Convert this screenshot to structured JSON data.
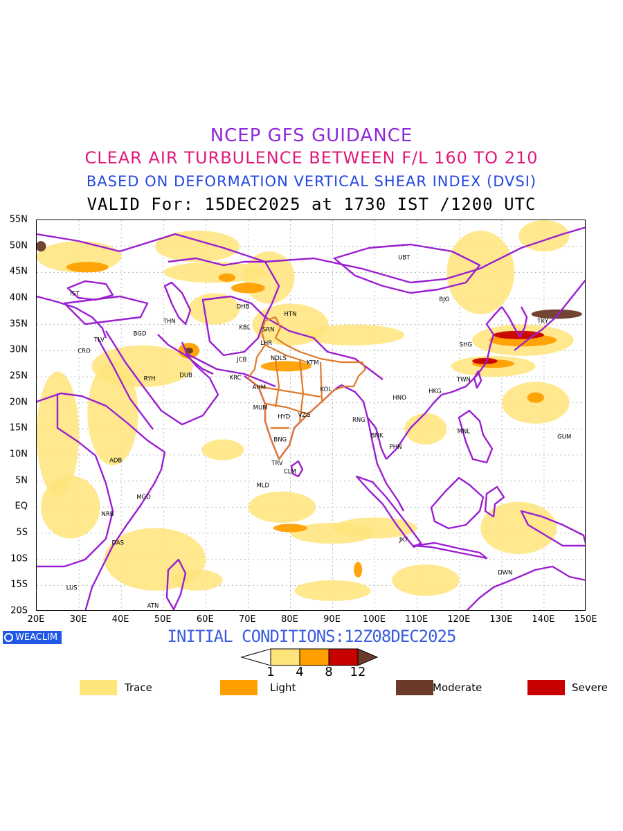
{
  "titles": {
    "line1": "NCEP GFS GUIDANCE",
    "line2": "CLEAR AIR TURBULENCE BETWEEN F/L 160 TO 210",
    "line3": "BASED ON DEFORMATION VERTICAL SHEAR INDEX (DVSI)",
    "line4": "VALID For: 15DEC2025 at 1730 IST /1200 UTC"
  },
  "lat_labels": [
    "55N",
    "50N",
    "45N",
    "40N",
    "35N",
    "30N",
    "25N",
    "20N",
    "15N",
    "10N",
    "5N",
    "EQ",
    "5S",
    "10S",
    "15S",
    "20S"
  ],
  "lon_labels": [
    "20E",
    "30E",
    "40E",
    "50E",
    "60E",
    "70E",
    "80E",
    "90E",
    "100E",
    "110E",
    "120E",
    "130E",
    "140E",
    "150E"
  ],
  "initial_conditions": "INITIAL CONDITIONS:12Z08DEC2025",
  "logo_text": "WEACLIM",
  "colorbar": {
    "ticks": [
      "1",
      "4",
      "8",
      "12"
    ],
    "colors": [
      "#ffe47a",
      "#ffa000",
      "#c80000",
      "#6b3a28"
    ]
  },
  "legend": [
    {
      "label": "Trace",
      "color": "#ffe47a"
    },
    {
      "label": "Light",
      "color": "#ffa000"
    },
    {
      "label": "Moderate",
      "color": "#6b3a28"
    },
    {
      "label": "Severe",
      "color": "#c80000"
    }
  ],
  "stations": [
    {
      "code": "UBT",
      "lon": 106.9,
      "lat": 47.9
    },
    {
      "code": "BJG",
      "lon": 116.4,
      "lat": 39.9
    },
    {
      "code": "SHG",
      "lon": 121.5,
      "lat": 31.2
    },
    {
      "code": "TKY",
      "lon": 139.7,
      "lat": 35.7
    },
    {
      "code": "TWN",
      "lon": 121.0,
      "lat": 24.5
    },
    {
      "code": "HKG",
      "lon": 114.2,
      "lat": 22.3
    },
    {
      "code": "HNO",
      "lon": 105.8,
      "lat": 21.0
    },
    {
      "code": "MNL",
      "lon": 121.0,
      "lat": 14.6
    },
    {
      "code": "GUM",
      "lon": 144.8,
      "lat": 13.5
    },
    {
      "code": "BNK",
      "lon": 100.5,
      "lat": 13.8
    },
    {
      "code": "PHN",
      "lon": 104.9,
      "lat": 11.6
    },
    {
      "code": "RNG",
      "lon": 96.2,
      "lat": 16.8
    },
    {
      "code": "KOL",
      "lon": 88.4,
      "lat": 22.6
    },
    {
      "code": "KTM",
      "lon": 85.3,
      "lat": 27.7
    },
    {
      "code": "NDLS",
      "lon": 77.2,
      "lat": 28.6
    },
    {
      "code": "LHR",
      "lon": 74.3,
      "lat": 31.5
    },
    {
      "code": "SRN",
      "lon": 74.8,
      "lat": 34.1
    },
    {
      "code": "HTN",
      "lon": 80.0,
      "lat": 37.1
    },
    {
      "code": "KBL",
      "lon": 69.2,
      "lat": 34.5
    },
    {
      "code": "DHB",
      "lon": 68.8,
      "lat": 38.5
    },
    {
      "code": "JCB",
      "lon": 68.5,
      "lat": 28.3
    },
    {
      "code": "KRC",
      "lon": 67.0,
      "lat": 24.9
    },
    {
      "code": "AHM",
      "lon": 72.6,
      "lat": 23.0
    },
    {
      "code": "MUM",
      "lon": 72.9,
      "lat": 19.1
    },
    {
      "code": "HYD",
      "lon": 78.5,
      "lat": 17.4
    },
    {
      "code": "VZG",
      "lon": 83.3,
      "lat": 17.7
    },
    {
      "code": "BNG",
      "lon": 77.6,
      "lat": 13.0
    },
    {
      "code": "TRV",
      "lon": 76.9,
      "lat": 8.5
    },
    {
      "code": "CLM",
      "lon": 79.9,
      "lat": 6.9
    },
    {
      "code": "MLD",
      "lon": 73.5,
      "lat": 4.2
    },
    {
      "code": "JKT",
      "lon": 106.8,
      "lat": -6.2
    },
    {
      "code": "DWN",
      "lon": 130.8,
      "lat": -12.5
    },
    {
      "code": "DUB",
      "lon": 55.3,
      "lat": 25.3
    },
    {
      "code": "RYH",
      "lon": 46.7,
      "lat": 24.7
    },
    {
      "code": "BGD",
      "lon": 44.4,
      "lat": 33.3
    },
    {
      "code": "THN",
      "lon": 51.4,
      "lat": 35.7
    },
    {
      "code": "IST",
      "lon": 29.0,
      "lat": 41.0
    },
    {
      "code": "TLV",
      "lon": 34.8,
      "lat": 32.1
    },
    {
      "code": "CRO",
      "lon": 31.2,
      "lat": 30.0
    },
    {
      "code": "ADB",
      "lon": 38.7,
      "lat": 9.0
    },
    {
      "code": "MGD",
      "lon": 45.3,
      "lat": 2.0
    },
    {
      "code": "NRB",
      "lon": 36.8,
      "lat": -1.3
    },
    {
      "code": "DAS",
      "lon": 39.2,
      "lat": -6.8
    },
    {
      "code": "LUS",
      "lon": 28.3,
      "lat": -15.4
    },
    {
      "code": "ATN",
      "lon": 47.5,
      "lat": -18.9
    }
  ],
  "turbulence_areas": [
    {
      "level": "trace",
      "lon": 30,
      "lat": 48,
      "rx": 10,
      "ry": 3
    },
    {
      "level": "trace",
      "lon": 58,
      "lat": 50,
      "rx": 10,
      "ry": 3
    },
    {
      "level": "trace",
      "lon": 62,
      "lat": 45,
      "rx": 12,
      "ry": 2
    },
    {
      "level": "trace",
      "lon": 75,
      "lat": 44,
      "rx": 6,
      "ry": 5
    },
    {
      "level": "trace",
      "lon": 80,
      "lat": 35,
      "rx": 9,
      "ry": 4
    },
    {
      "level": "trace",
      "lon": 62,
      "lat": 38,
      "rx": 6,
      "ry": 3
    },
    {
      "level": "trace",
      "lon": 45,
      "lat": 27,
      "rx": 12,
      "ry": 4
    },
    {
      "level": "trace",
      "lon": 38,
      "lat": 18,
      "rx": 6,
      "ry": 10
    },
    {
      "level": "trace",
      "lon": 25,
      "lat": 14,
      "rx": 5,
      "ry": 12
    },
    {
      "level": "trace",
      "lon": 28,
      "lat": 0,
      "rx": 7,
      "ry": 6
    },
    {
      "level": "trace",
      "lon": 48,
      "lat": -10,
      "rx": 12,
      "ry": 6
    },
    {
      "level": "trace",
      "lon": 78,
      "lat": 0,
      "rx": 8,
      "ry": 3
    },
    {
      "level": "trace",
      "lon": 90,
      "lat": -5,
      "rx": 10,
      "ry": 2
    },
    {
      "level": "trace",
      "lon": 100,
      "lat": -4,
      "rx": 10,
      "ry": 2
    },
    {
      "level": "trace",
      "lon": 90,
      "lat": -16,
      "rx": 9,
      "ry": 2
    },
    {
      "level": "trace",
      "lon": 112,
      "lat": -14,
      "rx": 8,
      "ry": 3
    },
    {
      "level": "trace",
      "lon": 134,
      "lat": -4,
      "rx": 9,
      "ry": 5
    },
    {
      "level": "trace",
      "lon": 138,
      "lat": 20,
      "rx": 8,
      "ry": 4
    },
    {
      "level": "trace",
      "lon": 125,
      "lat": 45,
      "rx": 8,
      "ry": 8
    },
    {
      "level": "trace",
      "lon": 140,
      "lat": 52,
      "rx": 6,
      "ry": 3
    },
    {
      "level": "trace",
      "lon": 135,
      "lat": 32,
      "rx": 12,
      "ry": 3
    },
    {
      "level": "trace",
      "lon": 128,
      "lat": 27,
      "rx": 10,
      "ry": 2
    },
    {
      "level": "trace",
      "lon": 112,
      "lat": 15,
      "rx": 5,
      "ry": 3
    },
    {
      "level": "trace",
      "lon": 95,
      "lat": 33,
      "rx": 12,
      "ry": 2
    },
    {
      "level": "trace",
      "lon": 64,
      "lat": 11,
      "rx": 5,
      "ry": 2
    },
    {
      "level": "trace",
      "lon": 58,
      "lat": -14,
      "rx": 6,
      "ry": 2
    },
    {
      "level": "light",
      "lon": 56,
      "lat": 30,
      "rx": 2.5,
      "ry": 1.5
    },
    {
      "level": "light",
      "lon": 79,
      "lat": 27,
      "rx": 6,
      "ry": 1
    },
    {
      "level": "light",
      "lon": 70,
      "lat": 42,
      "rx": 4,
      "ry": 1
    },
    {
      "level": "light",
      "lon": 32,
      "lat": 46,
      "rx": 5,
      "ry": 1
    },
    {
      "level": "light",
      "lon": 80,
      "lat": -4,
      "rx": 4,
      "ry": 0.8
    },
    {
      "level": "light",
      "lon": 96,
      "lat": -12,
      "rx": 1,
      "ry": 1.5
    },
    {
      "level": "light",
      "lon": 135,
      "lat": 32,
      "rx": 8,
      "ry": 1.2
    },
    {
      "level": "light",
      "lon": 128,
      "lat": 27.5,
      "rx": 5,
      "ry": 0.8
    },
    {
      "level": "light",
      "lon": 138,
      "lat": 21,
      "rx": 2,
      "ry": 1
    },
    {
      "level": "light",
      "lon": 65,
      "lat": 44,
      "rx": 2,
      "ry": 0.8
    },
    {
      "level": "severe",
      "lon": 134,
      "lat": 33,
      "rx": 6,
      "ry": 0.8
    },
    {
      "level": "severe",
      "lon": 126,
      "lat": 28,
      "rx": 3,
      "ry": 0.6
    },
    {
      "level": "moderate",
      "lon": 143,
      "lat": 37,
      "rx": 6,
      "ry": 0.9
    },
    {
      "level": "moderate",
      "lon": 56,
      "lat": 30,
      "rx": 1,
      "ry": 0.6
    },
    {
      "level": "moderate",
      "lon": 21,
      "lat": 50,
      "rx": 1.2,
      "ry": 1
    }
  ]
}
